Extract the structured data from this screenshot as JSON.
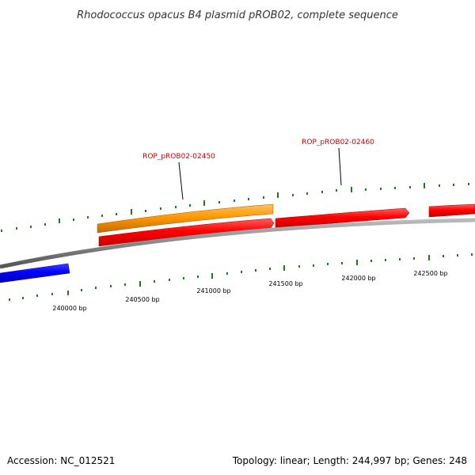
{
  "title": "Rhodococcus opacus B4 plasmid pROB02, complete sequence",
  "accession": "Accession: NC_012521",
  "summary": "Topology: linear; Length: 244,997 bp; Genes: 248",
  "colors": {
    "backbone": "#888888",
    "tick": "#1f7a1f",
    "gene_forward": "#ff0000",
    "gene_highlight": "#ff9900",
    "gene_reverse": "#0000ff",
    "label_text": "#cc0000"
  },
  "scale_labels": [
    "240000 bp",
    "240500 bp",
    "241000 bp",
    "241500 bp",
    "242000 bp",
    "242500 bp"
  ],
  "gene_labels": [
    "ROP_pROB02-02450",
    "ROP_pROB02-02460"
  ]
}
